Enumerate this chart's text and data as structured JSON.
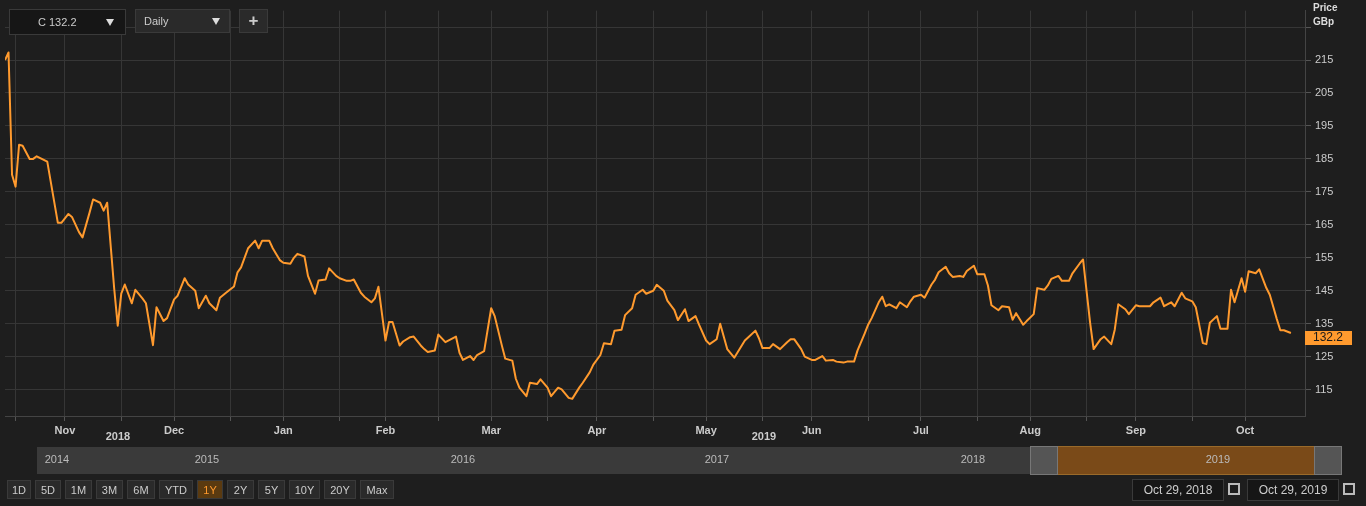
{
  "chart_data": {
    "type": "line",
    "ylabel": "Price GBp",
    "color": "#ff9a2e",
    "grid": true,
    "legend": false,
    "xlim": [
      "2018-10-29",
      "2019-11-02"
    ],
    "xticks": [
      {
        "value": "2018-11-01",
        "label": null
      },
      {
        "value": "2018-11-15",
        "label": "Nov"
      },
      {
        "value": "2018-12-01",
        "label": null
      },
      {
        "value": "2018-12-16",
        "label": "Dec"
      },
      {
        "value": "2019-01-01",
        "label": null
      },
      {
        "value": "2019-01-16",
        "label": "Jan"
      },
      {
        "value": "2019-02-01",
        "label": null
      },
      {
        "value": "2019-02-14",
        "label": "Feb"
      },
      {
        "value": "2019-03-01",
        "label": null
      },
      {
        "value": "2019-03-16",
        "label": "Mar"
      },
      {
        "value": "2019-04-01",
        "label": null
      },
      {
        "value": "2019-04-15",
        "label": "Apr"
      },
      {
        "value": "2019-05-01",
        "label": null
      },
      {
        "value": "2019-05-16",
        "label": "May"
      },
      {
        "value": "2019-06-01",
        "label": null
      },
      {
        "value": "2019-06-15",
        "label": "Jun"
      },
      {
        "value": "2019-07-01",
        "label": null
      },
      {
        "value": "2019-07-16",
        "label": "Jul"
      },
      {
        "value": "2019-08-01",
        "label": null
      },
      {
        "value": "2019-08-16",
        "label": "Aug"
      },
      {
        "value": "2019-09-01",
        "label": null
      },
      {
        "value": "2019-09-15",
        "label": "Sep"
      },
      {
        "value": "2019-10-01",
        "label": null
      },
      {
        "value": "2019-10-16",
        "label": "Oct"
      }
    ],
    "ylim": [
      107,
      230
    ],
    "yticks": [
      115,
      125,
      135,
      145,
      155,
      165,
      175,
      185,
      195,
      205,
      215,
      {
        "value": 225,
        "label": null
      }
    ],
    "x": [
      "2018-10-29",
      "2018-10-30",
      "2018-10-31",
      "2018-11-01",
      "2018-11-02",
      "2018-11-03",
      "2018-11-05",
      "2018-11-06",
      "2018-11-07",
      "2018-11-10",
      "2018-11-13",
      "2018-11-14",
      "2018-11-16",
      "2018-11-17",
      "2018-11-19",
      "2018-11-20",
      "2018-11-22",
      "2018-11-23",
      "2018-11-25",
      "2018-11-26",
      "2018-11-27",
      "2018-11-29",
      "2018-11-30",
      "2018-12-01",
      "2018-12-02",
      "2018-12-04",
      "2018-12-05",
      "2018-12-07",
      "2018-12-08",
      "2018-12-10",
      "2018-12-11",
      "2018-12-13",
      "2018-12-14",
      "2018-12-16",
      "2018-12-17",
      "2018-12-19",
      "2018-12-20",
      "2018-12-22",
      "2018-12-23",
      "2018-12-25",
      "2018-12-26",
      "2018-12-28",
      "2018-12-29",
      "2018-12-31",
      "2019-01-02",
      "2019-01-03",
      "2019-01-04",
      "2019-01-06",
      "2019-01-08",
      "2019-01-09",
      "2019-01-10",
      "2019-01-12",
      "2019-01-13",
      "2019-01-15",
      "2019-01-16",
      "2019-01-18",
      "2019-01-19",
      "2019-01-20",
      "2019-01-22",
      "2019-01-23",
      "2019-01-25",
      "2019-01-26",
      "2019-01-28",
      "2019-01-29",
      "2019-01-31",
      "2019-02-01",
      "2019-02-03",
      "2019-02-04",
      "2019-02-05",
      "2019-02-07",
      "2019-02-08",
      "2019-02-10",
      "2019-02-11",
      "2019-02-12",
      "2019-02-14",
      "2019-02-15",
      "2019-02-16",
      "2019-02-18",
      "2019-02-19",
      "2019-02-21",
      "2019-02-22",
      "2019-02-24",
      "2019-02-25",
      "2019-02-26",
      "2019-02-28",
      "2019-03-01",
      "2019-03-03",
      "2019-03-06",
      "2019-03-07",
      "2019-03-08",
      "2019-03-10",
      "2019-03-11",
      "2019-03-12",
      "2019-03-14",
      "2019-03-16",
      "2019-03-17",
      "2019-03-19",
      "2019-03-20",
      "2019-03-22",
      "2019-03-23",
      "2019-03-24",
      "2019-03-26",
      "2019-03-27",
      "2019-03-29",
      "2019-03-30",
      "2019-04-01",
      "2019-04-02",
      "2019-04-04",
      "2019-04-05",
      "2019-04-07",
      "2019-04-08",
      "2019-04-10",
      "2019-04-11",
      "2019-04-13",
      "2019-04-14",
      "2019-04-16",
      "2019-04-17",
      "2019-04-19",
      "2019-04-20",
      "2019-04-22",
      "2019-04-23",
      "2019-04-25",
      "2019-04-26",
      "2019-04-28",
      "2019-04-29",
      "2019-05-01",
      "2019-05-02",
      "2019-05-04",
      "2019-05-05",
      "2019-05-07",
      "2019-05-08",
      "2019-05-10",
      "2019-05-11",
      "2019-05-13",
      "2019-05-14",
      "2019-05-16",
      "2019-05-17",
      "2019-05-19",
      "2019-05-20",
      "2019-05-22",
      "2019-05-24",
      "2019-05-25",
      "2019-05-27",
      "2019-05-28",
      "2019-05-30",
      "2019-05-31",
      "2019-06-01",
      "2019-06-03",
      "2019-06-04",
      "2019-06-06",
      "2019-06-08",
      "2019-06-09",
      "2019-06-10",
      "2019-06-12",
      "2019-06-13",
      "2019-06-15",
      "2019-06-16",
      "2019-06-18",
      "2019-06-19",
      "2019-06-21",
      "2019-06-22",
      "2019-06-24",
      "2019-06-25",
      "2019-06-27",
      "2019-06-28",
      "2019-06-30",
      "2019-07-01",
      "2019-07-02",
      "2019-07-04",
      "2019-07-05",
      "2019-07-06",
      "2019-07-07",
      "2019-07-09",
      "2019-07-10",
      "2019-07-12",
      "2019-07-13",
      "2019-07-14",
      "2019-07-16",
      "2019-07-17",
      "2019-07-19",
      "2019-07-20",
      "2019-07-21",
      "2019-07-23",
      "2019-07-24",
      "2019-07-25",
      "2019-07-27",
      "2019-07-28",
      "2019-07-29",
      "2019-07-31",
      "2019-08-01",
      "2019-08-03",
      "2019-08-04",
      "2019-08-05",
      "2019-08-07",
      "2019-08-08",
      "2019-08-10",
      "2019-08-11",
      "2019-08-12",
      "2019-08-14",
      "2019-08-15",
      "2019-08-17",
      "2019-08-18",
      "2019-08-20",
      "2019-08-21",
      "2019-08-22",
      "2019-08-24",
      "2019-08-25",
      "2019-08-27",
      "2019-08-28",
      "2019-08-30",
      "2019-08-31",
      "2019-09-02",
      "2019-09-03",
      "2019-09-05",
      "2019-09-06",
      "2019-09-08",
      "2019-09-09",
      "2019-09-10",
      "2019-09-12",
      "2019-09-13",
      "2019-09-15",
      "2019-09-16",
      "2019-09-18",
      "2019-09-19",
      "2019-09-20",
      "2019-09-22",
      "2019-09-23",
      "2019-09-25",
      "2019-09-26",
      "2019-09-28",
      "2019-09-29",
      "2019-10-01",
      "2019-10-02",
      "2019-10-04",
      "2019-10-05",
      "2019-10-06",
      "2019-10-08",
      "2019-10-09",
      "2019-10-11",
      "2019-10-12",
      "2019-10-13",
      "2019-10-15",
      "2019-10-16",
      "2019-10-17",
      "2019-10-19",
      "2019-10-20",
      "2019-10-22",
      "2019-10-23",
      "2019-10-25",
      "2019-10-26",
      "2019-10-27",
      "2019-10-29"
    ],
    "values": [
      215,
      217.3,
      180.2,
      176.6,
      189.3,
      189,
      185,
      185,
      185.8,
      184.2,
      165.6,
      165.6,
      168.3,
      167.4,
      162.8,
      161.2,
      168.7,
      172.7,
      171.7,
      169.3,
      171.7,
      145.6,
      134.4,
      144.1,
      146.9,
      141.2,
      145.3,
      142.7,
      141.2,
      128.5,
      140,
      135.8,
      136.7,
      142.4,
      143.5,
      148.8,
      146.9,
      145,
      139.7,
      143.5,
      141.2,
      139.1,
      142.9,
      144.6,
      146.3,
      150.6,
      152.1,
      157.9,
      160.2,
      157.9,
      160.2,
      160.2,
      157.9,
      154.3,
      153.5,
      153.2,
      155,
      156.2,
      155.4,
      149.5,
      144.1,
      148.1,
      148.4,
      151.8,
      149.5,
      148.8,
      148,
      148,
      148.4,
      144.4,
      143.2,
      141.5,
      142.7,
      146.2,
      129.9,
      135.5,
      135.5,
      128.4,
      129.6,
      130.9,
      131.1,
      128.4,
      127.3,
      126.4,
      126.9,
      131.7,
      129.4,
      131.1,
      126.2,
      124,
      125.2,
      124,
      125.5,
      126.7,
      139.7,
      137.3,
      128.5,
      124.4,
      123.8,
      118.3,
      115.6,
      113,
      117.1,
      116.7,
      118.1,
      115.6,
      113,
      115.6,
      115.1,
      112.5,
      112.2,
      115.6,
      117.1,
      120.3,
      122.6,
      125.5,
      129.1,
      128.8,
      132.9,
      133.2,
      137.6,
      139.7,
      143.8,
      145.3,
      144.1,
      145,
      146.8,
      145,
      142,
      139.1,
      136.1,
      139.4,
      135.8,
      137.3,
      134.7,
      129.9,
      128.8,
      130.3,
      135,
      127.3,
      124.7,
      126.4,
      129.9,
      130.9,
      132.9,
      130.6,
      127.6,
      127.6,
      128.8,
      127.3,
      129.4,
      130.3,
      130.3,
      127.3,
      125,
      124,
      124,
      125.2,
      123.8,
      124,
      123.5,
      123.2,
      123.5,
      123.5,
      126.9,
      132,
      134.7,
      136.7,
      141.5,
      143.2,
      140.3,
      140.9,
      139.7,
      141.5,
      140,
      141.8,
      143.2,
      143.8,
      142.9,
      146.9,
      148.4,
      150.6,
      152.3,
      150.3,
      149.2,
      149.5,
      149.2,
      151,
      152.6,
      150,
      150,
      146.6,
      140.6,
      139.1,
      140.3,
      140,
      136.2,
      138.2,
      134.7,
      135.8,
      137.9,
      145.8,
      145.3,
      146.6,
      148.6,
      149.5,
      148,
      148,
      150.3,
      153.2,
      154.5,
      135.3,
      127.3,
      130.3,
      131.1,
      128.8,
      133.2,
      140.9,
      139.4,
      137.9,
      140.6,
      140.3,
      140.3,
      140.3,
      141.5,
      142.9,
      140.3,
      141.5,
      140.3,
      144.4,
      142.7,
      141.8,
      140,
      129.1,
      128.8,
      135.3,
      137.3,
      133.5,
      133.5,
      145.3,
      141.5,
      148.8,
      144.7,
      150.9,
      150.3,
      151.5,
      145.9,
      143.8,
      136.4,
      133,
      133,
      132.2
    ],
    "value_labels": [
      null,
      null,
      null,
      null,
      null,
      null,
      null,
      null,
      null,
      null,
      null,
      null,
      null,
      null,
      null,
      null,
      null,
      null,
      null,
      null,
      null,
      null,
      null,
      null,
      null,
      null,
      null,
      null,
      null,
      null,
      null,
      null,
      null,
      null,
      null,
      null,
      null,
      null,
      null,
      null,
      null,
      null,
      null,
      null,
      null,
      null,
      null,
      null,
      null,
      null,
      null,
      null,
      null,
      null,
      null,
      null,
      null,
      null,
      null,
      null,
      null,
      null,
      null,
      null,
      null,
      null,
      null,
      null,
      null,
      null,
      null,
      null,
      null,
      null,
      null,
      null,
      null,
      null,
      null,
      null,
      null,
      null,
      null,
      null,
      null,
      null,
      null,
      null,
      null,
      null,
      null,
      null,
      null,
      null,
      null,
      null,
      null,
      null,
      null,
      null,
      null,
      null,
      null,
      null,
      null,
      null,
      null,
      null,
      null,
      null,
      null,
      null,
      null,
      null,
      null,
      null,
      null,
      null,
      null,
      null,
      null,
      null,
      null,
      null,
      null,
      null,
      null,
      null,
      null,
      null,
      null,
      null,
      null,
      null,
      null,
      null,
      null,
      null,
      null,
      null,
      null,
      null,
      null,
      null,
      null,
      null,
      null,
      null,
      null,
      null,
      null,
      null,
      null,
      null,
      null,
      null,
      null,
      null,
      null,
      null,
      null,
      null,
      null,
      null,
      null,
      null,
      null,
      null,
      null,
      null,
      null,
      null,
      null,
      null,
      null,
      null,
      null,
      null,
      null,
      null,
      null,
      null,
      null,
      null,
      null,
      null,
      null,
      null,
      null,
      null,
      null,
      null,
      null,
      null,
      null,
      null,
      null,
      null,
      null,
      null,
      null,
      null,
      null,
      null,
      null,
      null,
      null,
      null,
      null,
      null,
      null,
      null,
      null,
      null,
      null,
      null,
      null,
      null,
      null,
      null,
      null,
      null,
      null,
      null,
      null,
      null,
      null,
      null,
      null,
      null,
      null,
      null,
      null,
      null,
      null,
      null,
      null,
      null,
      null,
      null,
      null,
      null,
      null,
      null,
      null,
      null,
      null,
      null,
      null,
      null,
      null,
      "132.2"
    ],
    "annotations": [
      "C 132.2",
      "Daily",
      "+",
      "2018",
      "2019",
      "2014",
      "2015",
      "2016",
      "2017",
      "2018",
      "2019",
      "1D",
      "5D",
      "1M",
      "3M",
      "6M",
      "YTD",
      "1Y",
      "2Y",
      "5Y",
      "10Y",
      "20Y",
      "Max",
      "Oct 29, 2018",
      "Oct 29, 2019"
    ]
  }
}
